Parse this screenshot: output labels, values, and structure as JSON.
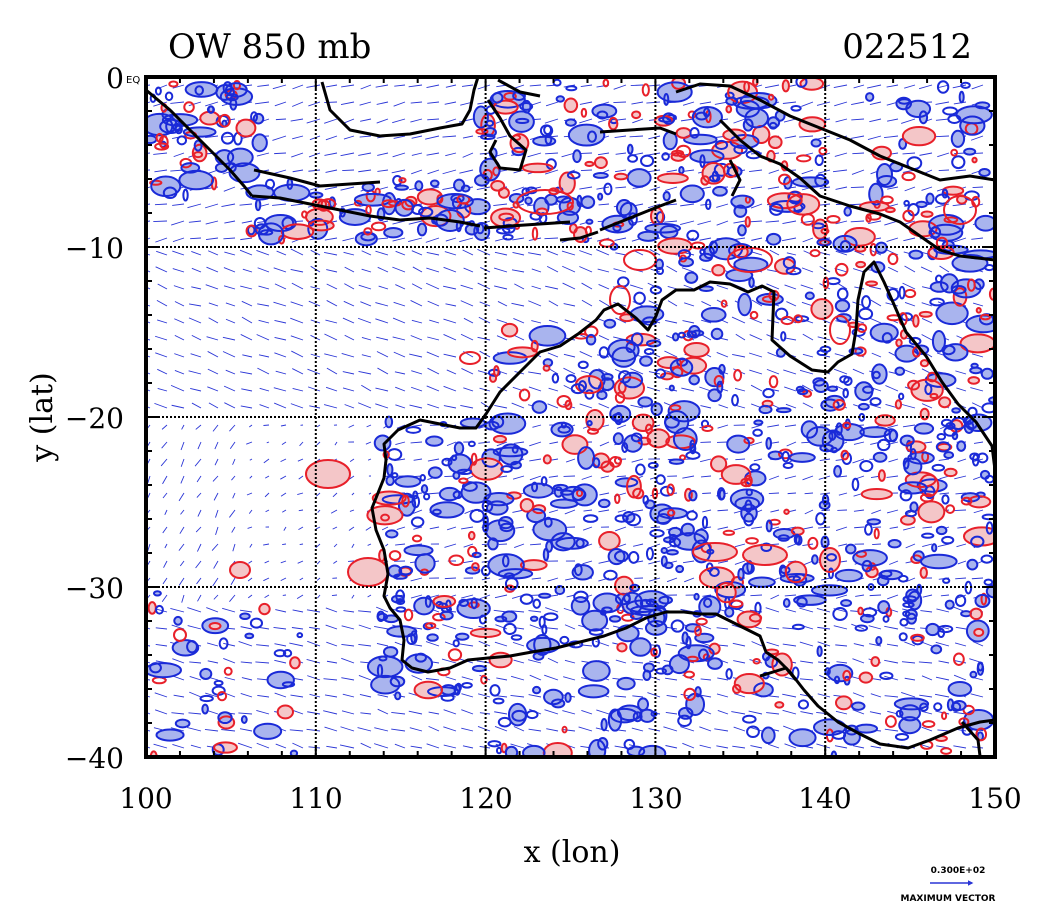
{
  "header": {
    "title": "OW 850 mb",
    "timestamp": "022512"
  },
  "axes": {
    "x_label": "x (lon)",
    "y_label": "y (lat)",
    "x_ticks": [
      "100",
      "110",
      "120",
      "130",
      "140",
      "150"
    ],
    "y_ticks": [
      "0",
      "−10",
      "−20",
      "−30",
      "−40"
    ],
    "y_top_suffix": "EQ",
    "x_range": [
      100,
      150
    ],
    "y_range": [
      -40,
      0
    ]
  },
  "legend": {
    "max_vector_value": "0.300E+02",
    "max_vector_label": "MAXIMUM VECTOR"
  },
  "colors": {
    "coast": "#000000",
    "positive_contour": "#e8202a",
    "positive_fill": "#f4c6c8",
    "negative_contour": "#1a2ad8",
    "negative_fill": "#a9b4ee",
    "vector": "#2a35d6",
    "grid": "#000000"
  },
  "map_data": {
    "grid_lon": [
      110,
      120,
      130,
      140
    ],
    "grid_lat": [
      -10,
      -20,
      -30
    ]
  }
}
